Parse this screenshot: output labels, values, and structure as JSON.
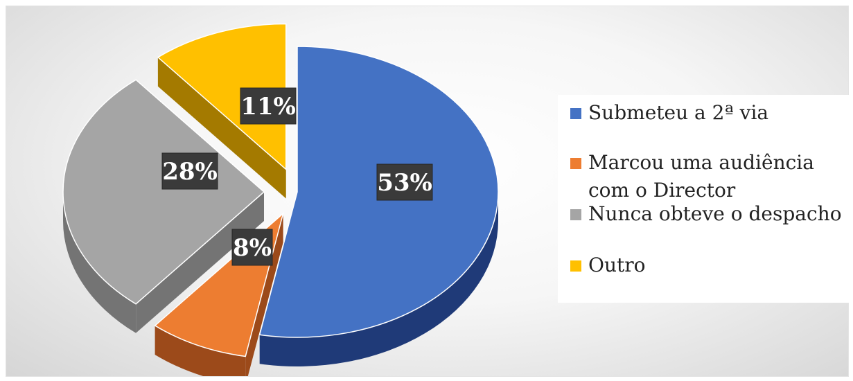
{
  "chart_data": {
    "type": "pie",
    "categories": [
      "Submeteu a 2ª via",
      "Marcou uma audiência\ncom o Director",
      "Nunca obteve o despacho",
      "Outro"
    ],
    "values": [
      53,
      8,
      28,
      11
    ],
    "value_labels": [
      "53%",
      "8%",
      "28%",
      "11%"
    ],
    "colors": [
      "#4472c4",
      "#ed7d31",
      "#a5a5a5",
      "#ffc000"
    ],
    "side_colors": [
      "#1f3a78",
      "#9c4a1a",
      "#747474",
      "#a47a00"
    ],
    "exploded": [
      false,
      true,
      true,
      true
    ],
    "style": "3d",
    "legend_position": "right"
  }
}
